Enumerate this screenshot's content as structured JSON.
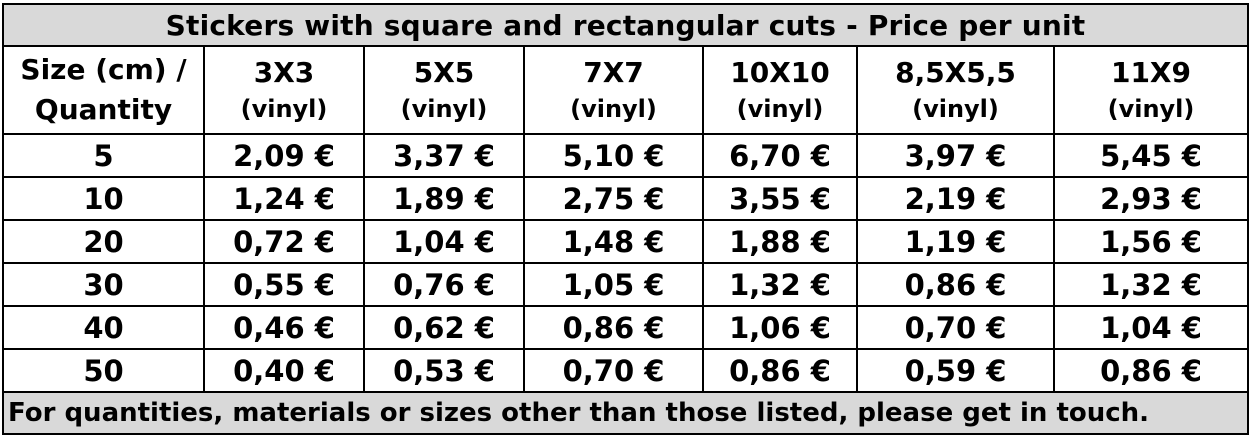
{
  "title": "Stickers with square and rectangular cuts - Price per unit",
  "corner": {
    "line1": "Size (cm) /",
    "line2": "Quantity"
  },
  "sizes": [
    {
      "size": "3X3",
      "material": "(vinyl)"
    },
    {
      "size": "5X5",
      "material": "(vinyl)"
    },
    {
      "size": "7X7",
      "material": "(vinyl)"
    },
    {
      "size": "10X10",
      "material": "(vinyl)"
    },
    {
      "size": "8,5X5,5",
      "material": "(vinyl)"
    },
    {
      "size": "11X9",
      "material": "(vinyl)"
    }
  ],
  "rows": [
    {
      "quantity": "5",
      "prices": [
        "2,09 €",
        "3,37 €",
        "5,10 €",
        "6,70 €",
        "3,97 €",
        "5,45 €"
      ]
    },
    {
      "quantity": "10",
      "prices": [
        "1,24 €",
        "1,89 €",
        "2,75 €",
        "3,55 €",
        "2,19 €",
        "2,93 €"
      ]
    },
    {
      "quantity": "20",
      "prices": [
        "0,72 €",
        "1,04 €",
        "1,48 €",
        "1,88 €",
        "1,19 €",
        "1,56 €"
      ]
    },
    {
      "quantity": "30",
      "prices": [
        "0,55 €",
        "0,76 €",
        "1,05 €",
        "1,32 €",
        "0,86 €",
        "1,32 €"
      ]
    },
    {
      "quantity": "40",
      "prices": [
        "0,46 €",
        "0,62 €",
        "0,86 €",
        "1,06 €",
        "0,70 €",
        "1,04 €"
      ]
    },
    {
      "quantity": "50",
      "prices": [
        "0,40 €",
        "0,53 €",
        "0,70 €",
        "0,86 €",
        "0,59 €",
        "0,86 €"
      ]
    }
  ],
  "footer": "For quantities, materials or sizes other than those listed, please get in touch.",
  "colors": {
    "band_background": "#d9d9d9",
    "border": "#000000",
    "text": "#000000"
  }
}
